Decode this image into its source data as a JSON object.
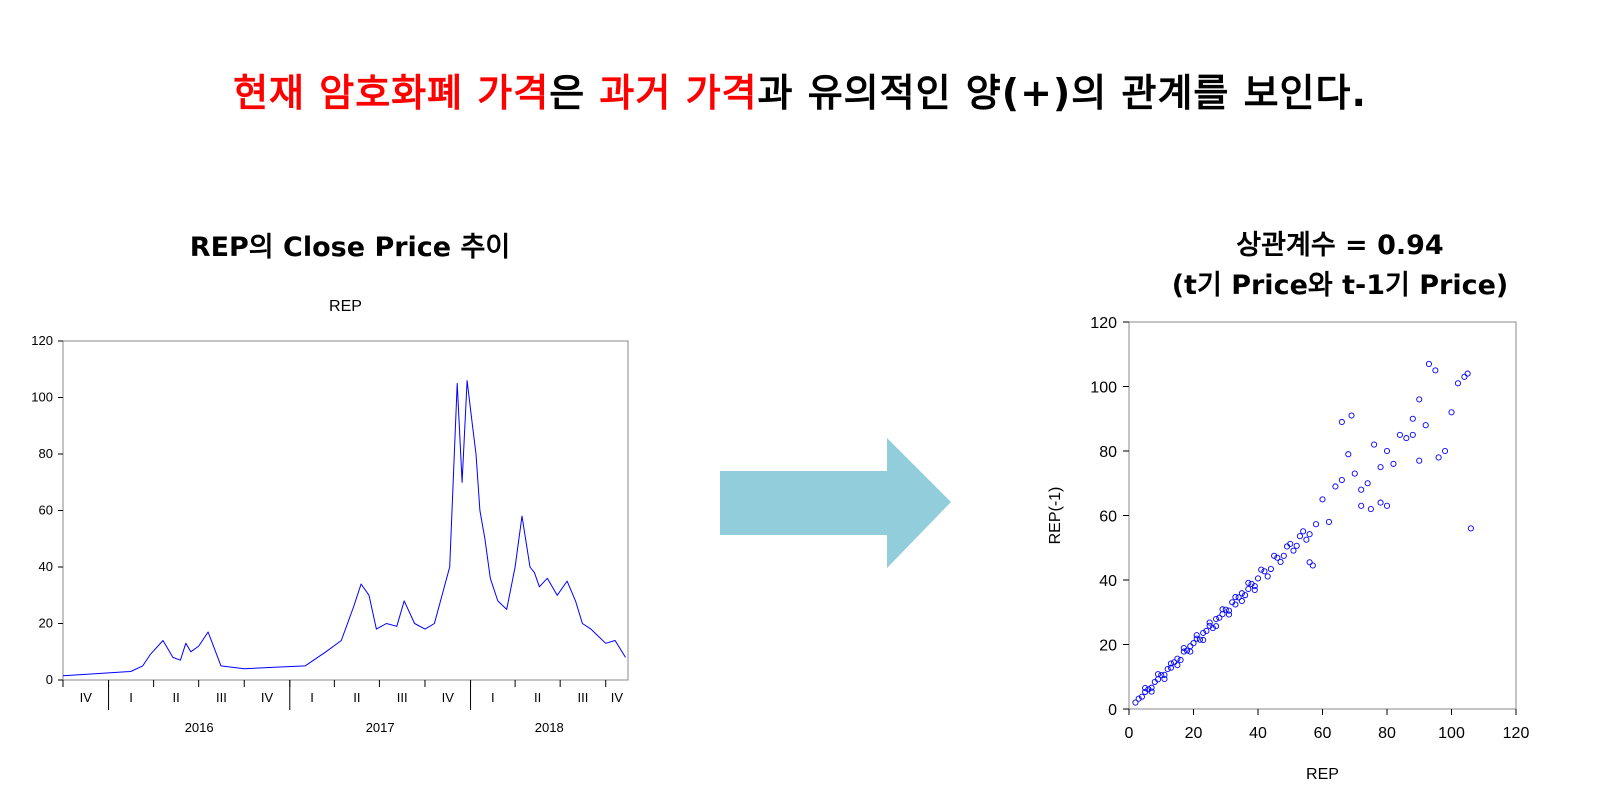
{
  "headline": {
    "part1": "현재 암호화폐 가격",
    "part2": "은 ",
    "part3": "과거 가격",
    "part4": "과 유의적인 양(+)의 관계를 보인다.",
    "highlight_color": "#ff0000"
  },
  "left_section_title": "REP의 Close Price 추이",
  "right_section_title": {
    "line1": "상관계수 = 0.94",
    "line2": "(t기 Price와 t-1기 Price)"
  },
  "arrow": {
    "color": "#92cddc"
  },
  "chart_data": [
    {
      "type": "line",
      "title": "REP",
      "color": "#0000ff",
      "ylim": [
        0,
        120
      ],
      "yticks": [
        0,
        20,
        40,
        60,
        80,
        100,
        120
      ],
      "xlim": [
        "2015-10-01",
        "2018-11-15"
      ],
      "quarter_ticks": [
        "IV",
        "I",
        "II",
        "III",
        "IV",
        "I",
        "II",
        "III",
        "IV",
        "I",
        "II",
        "III",
        "IV"
      ],
      "year_labels": [
        "2016",
        "2017",
        "2018"
      ],
      "x": [
        "2015-10-01",
        "2015-11-15",
        "2016-01-01",
        "2016-02-15",
        "2016-03-10",
        "2016-03-25",
        "2016-04-20",
        "2016-05-10",
        "2016-05-25",
        "2016-06-05",
        "2016-06-15",
        "2016-07-01",
        "2016-07-20",
        "2016-08-15",
        "2016-10-01",
        "2016-12-01",
        "2017-02-01",
        "2017-03-15",
        "2017-04-15",
        "2017-05-10",
        "2017-05-25",
        "2017-06-10",
        "2017-06-25",
        "2017-07-15",
        "2017-08-05",
        "2017-08-20",
        "2017-09-10",
        "2017-10-01",
        "2017-10-20",
        "2017-11-20",
        "2017-12-05",
        "2017-12-15",
        "2017-12-25",
        "2018-01-05",
        "2018-01-12",
        "2018-01-20",
        "2018-01-30",
        "2018-02-10",
        "2018-02-25",
        "2018-03-15",
        "2018-04-01",
        "2018-04-15",
        "2018-05-01",
        "2018-05-10",
        "2018-05-20",
        "2018-06-05",
        "2018-06-25",
        "2018-07-15",
        "2018-08-01",
        "2018-08-15",
        "2018-09-01",
        "2018-10-01",
        "2018-10-20",
        "2018-11-10"
      ],
      "y": [
        1.5,
        2.0,
        2.5,
        3.0,
        5.0,
        9.0,
        14.0,
        8.0,
        7.0,
        13.0,
        10.0,
        12.0,
        17.0,
        5.0,
        4.0,
        4.5,
        5.0,
        10.0,
        14.0,
        26.0,
        34.0,
        30.0,
        18.0,
        20.0,
        19.0,
        28.0,
        20.0,
        18.0,
        20.0,
        40.0,
        105.0,
        70.0,
        106.0,
        90.0,
        80.0,
        60.0,
        50.0,
        36.0,
        28.0,
        25.0,
        40.0,
        58.0,
        40.0,
        38.0,
        33.0,
        36.0,
        30.0,
        35.0,
        28.0,
        20.0,
        18.0,
        13.0,
        14.0,
        8.0
      ]
    },
    {
      "type": "scatter",
      "title": "상관계수 = 0.94",
      "xlabel": "REP",
      "ylabel": "REP(-1)",
      "color": "#0000ff",
      "xlim": [
        0,
        120
      ],
      "ylim": [
        0,
        120
      ],
      "xticks": [
        0,
        20,
        40,
        60,
        80,
        100,
        120
      ],
      "yticks": [
        0,
        20,
        40,
        60,
        80,
        100,
        120
      ],
      "points": [
        [
          2,
          2
        ],
        [
          3,
          3.2
        ],
        [
          4,
          3.8
        ],
        [
          5,
          5.3
        ],
        [
          6,
          6.1
        ],
        [
          7,
          6.6
        ],
        [
          8,
          8.4
        ],
        [
          9,
          9.2
        ],
        [
          10,
          10.5
        ],
        [
          11,
          10.6
        ],
        [
          12,
          12.4
        ],
        [
          13,
          12.8
        ],
        [
          14,
          14.5
        ],
        [
          15,
          15.6
        ],
        [
          16,
          15.2
        ],
        [
          17,
          17.8
        ],
        [
          18,
          18.1
        ],
        [
          19,
          19.5
        ],
        [
          20,
          20.4
        ],
        [
          21,
          21.8
        ],
        [
          22,
          21.5
        ],
        [
          23,
          23.6
        ],
        [
          24,
          24.2
        ],
        [
          25,
          25.8
        ],
        [
          26,
          25.1
        ],
        [
          27,
          27.9
        ],
        [
          28,
          28.3
        ],
        [
          29,
          29.4
        ],
        [
          30,
          30.8
        ],
        [
          31,
          30.5
        ],
        [
          32,
          33.1
        ],
        [
          33,
          32.4
        ],
        [
          34,
          34.6
        ],
        [
          35,
          35.9
        ],
        [
          36,
          35.3
        ],
        [
          37,
          37.2
        ],
        [
          38,
          38.8
        ],
        [
          39,
          38.1
        ],
        [
          40,
          40.5
        ],
        [
          42,
          42.7
        ],
        [
          44,
          43.4
        ],
        [
          46,
          46.9
        ],
        [
          48,
          47.5
        ],
        [
          50,
          51.2
        ],
        [
          52,
          50.6
        ],
        [
          54,
          55.1
        ],
        [
          56,
          54.2
        ],
        [
          58,
          57.3
        ],
        [
          5,
          6.5
        ],
        [
          7,
          5.4
        ],
        [
          9,
          10.8
        ],
        [
          11,
          9.3
        ],
        [
          13,
          14.1
        ],
        [
          15,
          13.6
        ],
        [
          17,
          18.9
        ],
        [
          19,
          17.8
        ],
        [
          21,
          22.9
        ],
        [
          23,
          21.4
        ],
        [
          25,
          26.8
        ],
        [
          27,
          25.7
        ],
        [
          29,
          30.9
        ],
        [
          31,
          29.3
        ],
        [
          33,
          34.7
        ],
        [
          35,
          33.5
        ],
        [
          37,
          39.1
        ],
        [
          39,
          36.9
        ],
        [
          41,
          43.2
        ],
        [
          43,
          41.1
        ],
        [
          45,
          47.5
        ],
        [
          47,
          45.6
        ],
        [
          49,
          50.4
        ],
        [
          51,
          49.1
        ],
        [
          53,
          53.6
        ],
        [
          55,
          52.5
        ],
        [
          57,
          44.5
        ],
        [
          56,
          45.5
        ],
        [
          60,
          65
        ],
        [
          62,
          58
        ],
        [
          64,
          69
        ],
        [
          66,
          71
        ],
        [
          68,
          79
        ],
        [
          70,
          73
        ],
        [
          72,
          68
        ],
        [
          74,
          70
        ],
        [
          75,
          62
        ],
        [
          76,
          82
        ],
        [
          78,
          75
        ],
        [
          80,
          80
        ],
        [
          82,
          76
        ],
        [
          84,
          85
        ],
        [
          86,
          84
        ],
        [
          88,
          90
        ],
        [
          90,
          96
        ],
        [
          92,
          88
        ],
        [
          93,
          107
        ],
        [
          95,
          105
        ],
        [
          96,
          78
        ],
        [
          98,
          80
        ],
        [
          100,
          92
        ],
        [
          102,
          101
        ],
        [
          104,
          103
        ],
        [
          105,
          104
        ],
        [
          106,
          56
        ],
        [
          66,
          89
        ],
        [
          69,
          91
        ],
        [
          72,
          63
        ],
        [
          78,
          64
        ],
        [
          80,
          63
        ],
        [
          90,
          77
        ],
        [
          88,
          85
        ]
      ]
    }
  ]
}
